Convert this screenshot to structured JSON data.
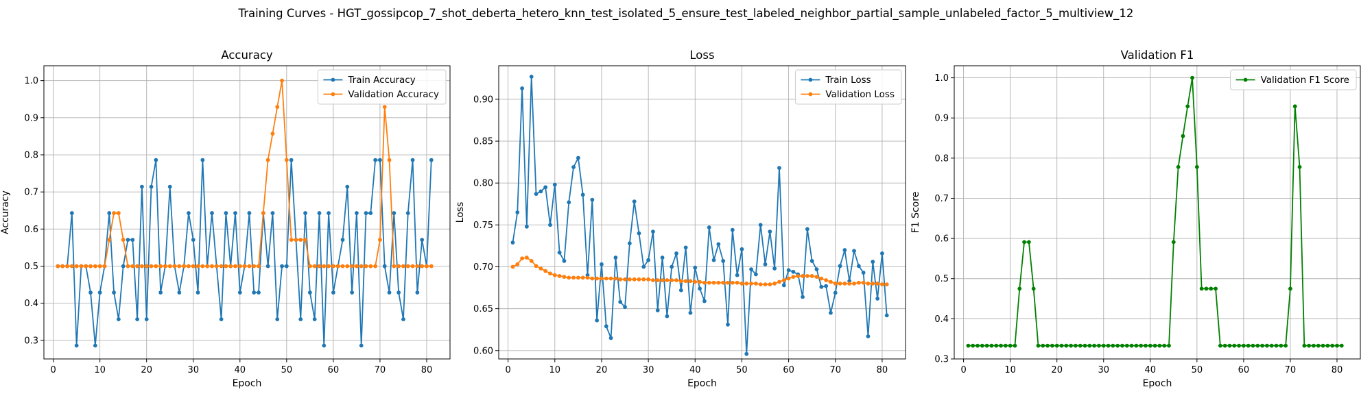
{
  "suptitle": "Training Curves - HGT_gossipcop_7_shot_deberta_hetero_knn_test_isolated_5_ensure_test_labeled_neighbor_partial_sample_unlabeled_factor_5_multiview_12",
  "colors": {
    "train": "#1f77b4",
    "validation": "#ff7f0e",
    "f1": "#008000",
    "grid": "#b0b0b0"
  },
  "chart_data": [
    {
      "type": "line",
      "title": "Accuracy",
      "xlabel": "Epoch",
      "ylabel": "Accuracy",
      "xlim": [
        -2,
        85
      ],
      "ylim": [
        0.25,
        1.04
      ],
      "xticks": [
        0,
        10,
        20,
        30,
        40,
        50,
        60,
        70,
        80
      ],
      "yticks": [
        0.3,
        0.4,
        0.5,
        0.6,
        0.7,
        0.8,
        0.9,
        1.0
      ],
      "ytick_labels": [
        "0.3",
        "0.4",
        "0.5",
        "0.6",
        "0.7",
        "0.8",
        "0.9",
        "1.0"
      ],
      "grid": true,
      "legend_position": "upper right",
      "series": [
        {
          "name": "Train Accuracy",
          "color": "#1f77b4",
          "x": [
            1,
            2,
            3,
            4,
            5,
            6,
            7,
            8,
            9,
            10,
            11,
            12,
            13,
            14,
            15,
            16,
            17,
            18,
            19,
            20,
            21,
            22,
            23,
            24,
            25,
            26,
            27,
            28,
            29,
            30,
            31,
            32,
            33,
            34,
            35,
            36,
            37,
            38,
            39,
            40,
            41,
            42,
            43,
            44,
            45,
            46,
            47,
            48,
            49,
            50,
            51,
            52,
            53,
            54,
            55,
            56,
            57,
            58,
            59,
            60,
            61,
            62,
            63,
            64,
            65,
            66,
            67,
            68,
            69,
            70,
            71,
            72,
            73,
            74,
            75,
            76,
            77,
            78,
            79,
            80,
            81
          ],
          "values": [
            0.5,
            0.5,
            0.5,
            0.643,
            0.286,
            0.5,
            0.5,
            0.429,
            0.286,
            0.429,
            0.5,
            0.643,
            0.429,
            0.357,
            0.5,
            0.571,
            0.571,
            0.357,
            0.714,
            0.357,
            0.714,
            0.786,
            0.429,
            0.5,
            0.714,
            0.5,
            0.429,
            0.5,
            0.643,
            0.571,
            0.429,
            0.786,
            0.5,
            0.643,
            0.5,
            0.357,
            0.643,
            0.5,
            0.643,
            0.429,
            0.5,
            0.643,
            0.429,
            0.429,
            0.643,
            0.5,
            0.643,
            0.357,
            0.5,
            0.5,
            0.786,
            0.571,
            0.357,
            0.643,
            0.429,
            0.357,
            0.643,
            0.286,
            0.643,
            0.429,
            0.5,
            0.571,
            0.714,
            0.429,
            0.643,
            0.286,
            0.643,
            0.643,
            0.786,
            0.786,
            0.5,
            0.429,
            0.643,
            0.429,
            0.357,
            0.643,
            0.786,
            0.429,
            0.571,
            0.5,
            0.786
          ]
        },
        {
          "name": "Validation Accuracy",
          "color": "#ff7f0e",
          "x": [
            1,
            2,
            3,
            4,
            5,
            6,
            7,
            8,
            9,
            10,
            11,
            12,
            13,
            14,
            15,
            16,
            17,
            18,
            19,
            20,
            21,
            22,
            23,
            24,
            25,
            26,
            27,
            28,
            29,
            30,
            31,
            32,
            33,
            34,
            35,
            36,
            37,
            38,
            39,
            40,
            41,
            42,
            43,
            44,
            45,
            46,
            47,
            48,
            49,
            50,
            51,
            52,
            53,
            54,
            55,
            56,
            57,
            58,
            59,
            60,
            61,
            62,
            63,
            64,
            65,
            66,
            67,
            68,
            69,
            70,
            71,
            72,
            73,
            74,
            75,
            76,
            77,
            78,
            79,
            80,
            81
          ],
          "values": [
            0.5,
            0.5,
            0.5,
            0.5,
            0.5,
            0.5,
            0.5,
            0.5,
            0.5,
            0.5,
            0.5,
            0.571,
            0.643,
            0.643,
            0.571,
            0.5,
            0.5,
            0.5,
            0.5,
            0.5,
            0.5,
            0.5,
            0.5,
            0.5,
            0.5,
            0.5,
            0.5,
            0.5,
            0.5,
            0.5,
            0.5,
            0.5,
            0.5,
            0.5,
            0.5,
            0.5,
            0.5,
            0.5,
            0.5,
            0.5,
            0.5,
            0.5,
            0.5,
            0.5,
            0.643,
            0.786,
            0.857,
            0.929,
            1.0,
            0.786,
            0.571,
            0.571,
            0.571,
            0.571,
            0.5,
            0.5,
            0.5,
            0.5,
            0.5,
            0.5,
            0.5,
            0.5,
            0.5,
            0.5,
            0.5,
            0.5,
            0.5,
            0.5,
            0.5,
            0.571,
            0.929,
            0.786,
            0.5,
            0.5,
            0.5,
            0.5,
            0.5,
            0.5,
            0.5,
            0.5,
            0.5
          ]
        }
      ]
    },
    {
      "type": "line",
      "title": "Loss",
      "xlabel": "Epoch",
      "ylabel": "Loss",
      "xlim": [
        -2,
        85
      ],
      "ylim": [
        0.59,
        0.94
      ],
      "xticks": [
        0,
        10,
        20,
        30,
        40,
        50,
        60,
        70,
        80
      ],
      "yticks": [
        0.6,
        0.65,
        0.7,
        0.75,
        0.8,
        0.85,
        0.9
      ],
      "ytick_labels": [
        "0.60",
        "0.65",
        "0.70",
        "0.75",
        "0.80",
        "0.85",
        "0.90"
      ],
      "grid": true,
      "legend_position": "upper right",
      "series": [
        {
          "name": "Train Loss",
          "color": "#1f77b4",
          "x": [
            1,
            2,
            3,
            4,
            5,
            6,
            7,
            8,
            9,
            10,
            11,
            12,
            13,
            14,
            15,
            16,
            17,
            18,
            19,
            20,
            21,
            22,
            23,
            24,
            25,
            26,
            27,
            28,
            29,
            30,
            31,
            32,
            33,
            34,
            35,
            36,
            37,
            38,
            39,
            40,
            41,
            42,
            43,
            44,
            45,
            46,
            47,
            48,
            49,
            50,
            51,
            52,
            53,
            54,
            55,
            56,
            57,
            58,
            59,
            60,
            61,
            62,
            63,
            64,
            65,
            66,
            67,
            68,
            69,
            70,
            71,
            72,
            73,
            74,
            75,
            76,
            77,
            78,
            79,
            80,
            81
          ],
          "values": [
            0.729,
            0.765,
            0.913,
            0.748,
            0.927,
            0.787,
            0.79,
            0.795,
            0.75,
            0.798,
            0.717,
            0.707,
            0.777,
            0.819,
            0.83,
            0.786,
            0.69,
            0.78,
            0.636,
            0.703,
            0.629,
            0.615,
            0.711,
            0.658,
            0.652,
            0.728,
            0.778,
            0.74,
            0.7,
            0.708,
            0.742,
            0.648,
            0.711,
            0.641,
            0.7,
            0.716,
            0.672,
            0.723,
            0.645,
            0.699,
            0.674,
            0.659,
            0.747,
            0.708,
            0.727,
            0.707,
            0.631,
            0.744,
            0.69,
            0.721,
            0.596,
            0.697,
            0.691,
            0.75,
            0.703,
            0.742,
            0.698,
            0.818,
            0.678,
            0.696,
            0.694,
            0.691,
            0.664,
            0.745,
            0.707,
            0.697,
            0.676,
            0.677,
            0.645,
            0.669,
            0.701,
            0.72,
            0.683,
            0.719,
            0.701,
            0.693,
            0.617,
            0.706,
            0.662,
            0.716,
            0.642
          ]
        },
        {
          "name": "Validation Loss",
          "color": "#ff7f0e",
          "x": [
            1,
            2,
            3,
            4,
            5,
            6,
            7,
            8,
            9,
            10,
            11,
            12,
            13,
            14,
            15,
            16,
            17,
            18,
            19,
            20,
            21,
            22,
            23,
            24,
            25,
            26,
            27,
            28,
            29,
            30,
            31,
            32,
            33,
            34,
            35,
            36,
            37,
            38,
            39,
            40,
            41,
            42,
            43,
            44,
            45,
            46,
            47,
            48,
            49,
            50,
            51,
            52,
            53,
            54,
            55,
            56,
            57,
            58,
            59,
            60,
            61,
            62,
            63,
            64,
            65,
            66,
            67,
            68,
            69,
            70,
            71,
            72,
            73,
            74,
            75,
            76,
            77,
            78,
            79,
            80,
            81
          ],
          "values": [
            0.7,
            0.703,
            0.71,
            0.711,
            0.707,
            0.701,
            0.698,
            0.695,
            0.692,
            0.69,
            0.689,
            0.688,
            0.687,
            0.687,
            0.687,
            0.687,
            0.687,
            0.686,
            0.686,
            0.686,
            0.686,
            0.686,
            0.686,
            0.685,
            0.685,
            0.685,
            0.685,
            0.685,
            0.685,
            0.685,
            0.684,
            0.684,
            0.684,
            0.684,
            0.684,
            0.684,
            0.683,
            0.683,
            0.683,
            0.682,
            0.682,
            0.681,
            0.681,
            0.681,
            0.681,
            0.681,
            0.681,
            0.681,
            0.681,
            0.68,
            0.68,
            0.68,
            0.68,
            0.679,
            0.679,
            0.679,
            0.68,
            0.682,
            0.684,
            0.686,
            0.688,
            0.689,
            0.689,
            0.689,
            0.689,
            0.688,
            0.686,
            0.684,
            0.682,
            0.68,
            0.68,
            0.68,
            0.68,
            0.68,
            0.681,
            0.681,
            0.68,
            0.68,
            0.68,
            0.679,
            0.679
          ]
        }
      ]
    },
    {
      "type": "line",
      "title": "Validation F1",
      "xlabel": "Epoch",
      "ylabel": "F1 Score",
      "xlim": [
        -2,
        85
      ],
      "ylim": [
        0.3,
        1.03
      ],
      "xticks": [
        0,
        10,
        20,
        30,
        40,
        50,
        60,
        70,
        80
      ],
      "yticks": [
        0.3,
        0.4,
        0.5,
        0.6,
        0.7,
        0.8,
        0.9,
        1.0
      ],
      "ytick_labels": [
        "0.3",
        "0.4",
        "0.5",
        "0.6",
        "0.7",
        "0.8",
        "0.9",
        "1.0"
      ],
      "grid": true,
      "legend_position": "upper right",
      "series": [
        {
          "name": "Validation F1 Score",
          "color": "#008000",
          "x": [
            1,
            2,
            3,
            4,
            5,
            6,
            7,
            8,
            9,
            10,
            11,
            12,
            13,
            14,
            15,
            16,
            17,
            18,
            19,
            20,
            21,
            22,
            23,
            24,
            25,
            26,
            27,
            28,
            29,
            30,
            31,
            32,
            33,
            34,
            35,
            36,
            37,
            38,
            39,
            40,
            41,
            42,
            43,
            44,
            45,
            46,
            47,
            48,
            49,
            50,
            51,
            52,
            53,
            54,
            55,
            56,
            57,
            58,
            59,
            60,
            61,
            62,
            63,
            64,
            65,
            66,
            67,
            68,
            69,
            70,
            71,
            72,
            73,
            74,
            75,
            76,
            77,
            78,
            79,
            80,
            81
          ],
          "values": [
            0.333,
            0.333,
            0.333,
            0.333,
            0.333,
            0.333,
            0.333,
            0.333,
            0.333,
            0.333,
            0.333,
            0.475,
            0.591,
            0.591,
            0.475,
            0.333,
            0.333,
            0.333,
            0.333,
            0.333,
            0.333,
            0.333,
            0.333,
            0.333,
            0.333,
            0.333,
            0.333,
            0.333,
            0.333,
            0.333,
            0.333,
            0.333,
            0.333,
            0.333,
            0.333,
            0.333,
            0.333,
            0.333,
            0.333,
            0.333,
            0.333,
            0.333,
            0.333,
            0.333,
            0.591,
            0.778,
            0.855,
            0.929,
            1.0,
            0.778,
            0.475,
            0.475,
            0.475,
            0.475,
            0.333,
            0.333,
            0.333,
            0.333,
            0.333,
            0.333,
            0.333,
            0.333,
            0.333,
            0.333,
            0.333,
            0.333,
            0.333,
            0.333,
            0.333,
            0.475,
            0.929,
            0.778,
            0.333,
            0.333,
            0.333,
            0.333,
            0.333,
            0.333,
            0.333,
            0.333,
            0.333
          ]
        }
      ]
    }
  ]
}
